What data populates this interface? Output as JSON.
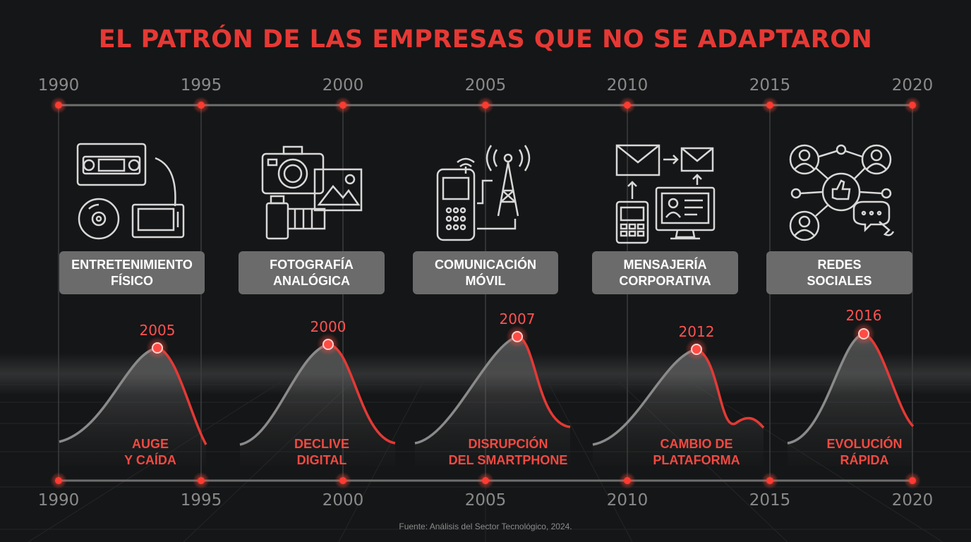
{
  "title": "EL PATRÓN DE LAS EMPRESAS QUE NO SE ADAPTARON",
  "timeline_years": [
    "1990",
    "1995",
    "2000",
    "2005",
    "2010",
    "2015",
    "2020"
  ],
  "segments": [
    {
      "category": "ENTRETENIMIENTO\nFÍSICO",
      "peak_year": "2005",
      "description": "AUGE\nY CAÍDA",
      "icon": "vhs-cd-tv-icon"
    },
    {
      "category": "FOTOGRAFÍA\nANALÓGICA",
      "peak_year": "2000",
      "description": "DECLIVE\nDIGITAL",
      "icon": "camera-film-icon"
    },
    {
      "category": "COMUNICACIÓN\nMÓVIL",
      "peak_year": "2007",
      "description": "DISRUPCIÓN\nDEL SMARTPHONE",
      "icon": "cellphone-tower-icon"
    },
    {
      "category": "MENSAJERÍA\nCORPORATIVA",
      "peak_year": "2012",
      "description": "CAMBIO DE\nPLATAFORMA",
      "icon": "email-pager-computer-icon"
    },
    {
      "category": "REDES\nSOCIALES",
      "peak_year": "2016",
      "description": "EVOLUCIÓN\nRÁPIDA",
      "icon": "social-network-icon"
    }
  ],
  "source": "Fuente: Análisis del Sector Tecnológico, 2024.",
  "colors": {
    "accent": "#e53935",
    "line": "#6e6e6e",
    "box": "#6b6b6b",
    "background": "#151617"
  }
}
